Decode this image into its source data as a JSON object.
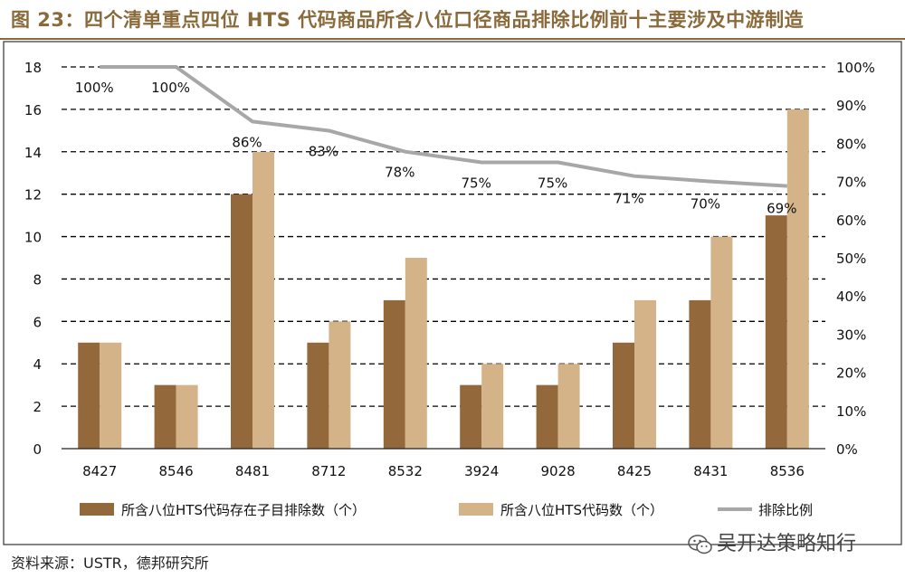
{
  "figure_title": "图 23：四个清单重点四位 HTS 代码商品所含八位口径商品排除比例前十主要涉及中游制造",
  "source_note": "资料来源：USTR，德邦研究所",
  "watermark": "吴开达策略知行",
  "colors": {
    "series_dark": "#93683b",
    "series_light": "#d5b388",
    "line": "#a7a7a7",
    "title": "#8a6a3a"
  },
  "chart_data": {
    "type": "bar",
    "categories": [
      "8427",
      "8546",
      "8481",
      "8712",
      "8532",
      "3924",
      "9028",
      "8425",
      "8431",
      "8536"
    ],
    "series": [
      {
        "name": "所含八位HTS代码存在子目排除数（个）",
        "type": "bar",
        "axis": "left",
        "values": [
          5,
          3,
          12,
          5,
          7,
          3,
          3,
          5,
          7,
          11
        ]
      },
      {
        "name": "所含八位HTS代码数（个）",
        "type": "bar",
        "axis": "left",
        "values": [
          5,
          3,
          14,
          6,
          9,
          4,
          4,
          7,
          10,
          16
        ]
      },
      {
        "name": "排除比例",
        "type": "line",
        "axis": "right",
        "values": [
          1.0,
          1.0,
          0.857,
          0.833,
          0.778,
          0.75,
          0.75,
          0.714,
          0.7,
          0.688
        ],
        "labels": [
          "100%",
          "100%",
          "86%",
          "83%",
          "78%",
          "75%",
          "75%",
          "71%",
          "70%",
          "69%"
        ]
      }
    ],
    "y_left": {
      "min": 0,
      "max": 18,
      "ticks": [
        "0",
        "2",
        "4",
        "6",
        "8",
        "10",
        "12",
        "14",
        "16",
        "18"
      ]
    },
    "y_right": {
      "min": 0,
      "max": 1.0,
      "ticks": [
        "0%",
        "10%",
        "20%",
        "30%",
        "40%",
        "50%",
        "60%",
        "70%",
        "80%",
        "90%",
        "100%"
      ]
    },
    "grid": "dashed-horizontal",
    "legend_position": "bottom"
  }
}
